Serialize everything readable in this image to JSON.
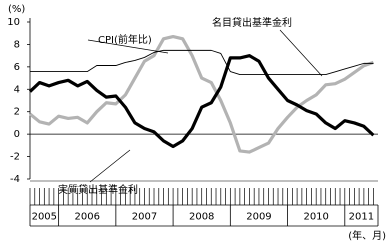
{
  "chart_data": {
    "type": "line",
    "y_unit": "(%)",
    "x_unit": "(年、月)",
    "x": [
      2005.5,
      2005.667,
      2005.833,
      2006,
      2006.167,
      2006.333,
      2006.5,
      2006.667,
      2006.833,
      2007,
      2007.167,
      2007.333,
      2007.5,
      2007.667,
      2007.833,
      2008,
      2008.167,
      2008.333,
      2008.5,
      2008.667,
      2008.833,
      2009,
      2009.167,
      2009.333,
      2009.5,
      2009.667,
      2009.833,
      2010,
      2010.167,
      2010.333,
      2010.5,
      2010.667,
      2010.833,
      2011,
      2011.167,
      2011.333,
      2011.5
    ],
    "xlim": [
      2005.5,
      2011.58
    ],
    "years": [
      "2005",
      "2006",
      "2007",
      "2008",
      "2009",
      "2010",
      "2011"
    ],
    "ylim": [
      -4,
      10
    ],
    "yticks": [
      -4,
      -2,
      0,
      2,
      4,
      6,
      8,
      10
    ],
    "series": [
      {
        "name": "CPI(前年比)",
        "color": "#b3b3b3",
        "width": 3.2,
        "values": [
          1.8,
          1.1,
          0.9,
          1.6,
          1.4,
          1.5,
          1.0,
          2.0,
          2.8,
          2.7,
          3.5,
          5.0,
          6.5,
          7.0,
          8.5,
          8.7,
          8.5,
          7.0,
          5.0,
          4.6,
          3.0,
          1.0,
          -1.5,
          -1.6,
          -1.2,
          -0.8,
          0.5,
          1.5,
          2.4,
          3.0,
          3.5,
          4.4,
          4.5,
          4.9,
          5.5,
          6.1,
          6.4
        ]
      },
      {
        "name": "名目貸出基準金利",
        "color": "#000000",
        "width": 0.9,
        "values": [
          5.58,
          5.58,
          5.58,
          5.58,
          5.58,
          5.58,
          5.58,
          6.12,
          6.12,
          6.12,
          6.39,
          6.57,
          6.84,
          7.29,
          7.47,
          7.47,
          7.47,
          7.47,
          7.47,
          7.47,
          7.2,
          5.58,
          5.31,
          5.31,
          5.31,
          5.31,
          5.31,
          5.31,
          5.31,
          5.31,
          5.31,
          5.31,
          5.56,
          5.81,
          6.06,
          6.31,
          6.31
        ]
      },
      {
        "name": "実質貸出基準金利",
        "color": "#000000",
        "width": 3.2,
        "values": [
          3.8,
          4.6,
          4.3,
          4.6,
          4.8,
          4.3,
          4.7,
          3.9,
          3.3,
          3.4,
          2.4,
          1.0,
          0.5,
          0.2,
          -0.6,
          -1.1,
          -0.6,
          0.5,
          2.4,
          2.8,
          4.2,
          6.8,
          6.8,
          7.0,
          6.5,
          5.0,
          4.0,
          3.0,
          2.6,
          2.1,
          1.8,
          1.0,
          0.5,
          1.2,
          1.0,
          0.7,
          -0.1
        ]
      }
    ]
  }
}
